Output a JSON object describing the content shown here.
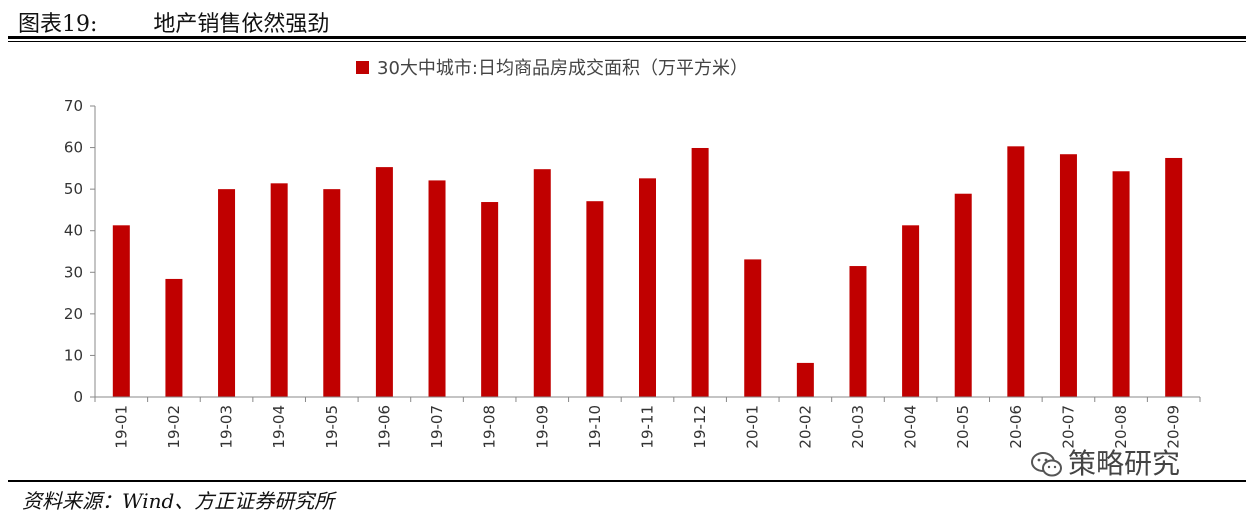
{
  "figure_title": "图表19:        地产销售依然强劲",
  "source": "资料来源：Wind、方正证券研究所",
  "watermark": "策略研究",
  "watermark_icon": "wechat-icon",
  "colors": {
    "bar": "#c00000",
    "axis": "#888888",
    "text": "#333333"
  },
  "chart_data": {
    "type": "bar",
    "title": "",
    "xlabel": "",
    "ylabel": "",
    "ylim": [
      0,
      70
    ],
    "yticks": [
      0,
      10,
      20,
      30,
      40,
      50,
      60,
      70
    ],
    "grid": false,
    "legend_placement": "top-center",
    "categories": [
      "19-01",
      "19-02",
      "19-03",
      "19-04",
      "19-05",
      "19-06",
      "19-07",
      "19-08",
      "19-09",
      "19-10",
      "19-11",
      "19-12",
      "20-01",
      "20-02",
      "20-03",
      "20-04",
      "20-05",
      "20-06",
      "20-07",
      "20-08",
      "20-09"
    ],
    "series": [
      {
        "name": "30大中城市:日均商品房成交面积（万平方米）",
        "values": [
          41.3,
          28.4,
          50.0,
          51.4,
          50.0,
          55.3,
          52.1,
          46.9,
          54.8,
          47.1,
          52.6,
          59.9,
          33.1,
          8.2,
          31.5,
          41.3,
          48.9,
          60.3,
          58.4,
          54.3,
          57.5
        ]
      }
    ]
  }
}
